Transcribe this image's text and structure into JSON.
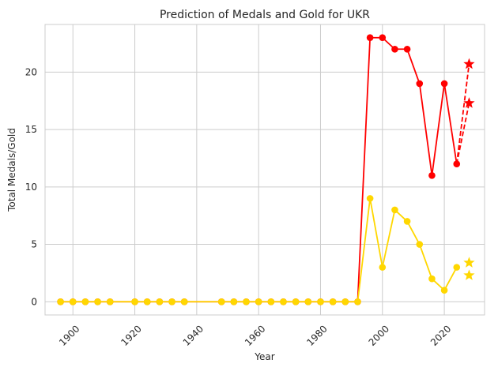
{
  "chart_data": {
    "type": "line",
    "title": "Prediction of Medals and Gold for UKR",
    "xlabel": "Year",
    "ylabel": "Total Medals/Gold",
    "xlim": [
      1891,
      2033
    ],
    "ylim": [
      -1.15,
      24.15
    ],
    "xticks": [
      1900,
      1920,
      1940,
      1960,
      1980,
      2000,
      2020
    ],
    "xtick_rotation": 45,
    "yticks": [
      0,
      5,
      10,
      15,
      20
    ],
    "grid": true,
    "series": [
      {
        "role": "total_medals",
        "color": "#ff0000",
        "marker": "circle",
        "line": "solid",
        "x": [
          1896,
          1900,
          1904,
          1908,
          1912,
          1920,
          1924,
          1928,
          1932,
          1936,
          1948,
          1952,
          1956,
          1960,
          1964,
          1968,
          1972,
          1976,
          1980,
          1984,
          1988,
          1992,
          1996,
          2000,
          2004,
          2008,
          2012,
          2016,
          2020,
          2024
        ],
        "y": [
          0,
          0,
          0,
          0,
          0,
          0,
          0,
          0,
          0,
          0,
          0,
          0,
          0,
          0,
          0,
          0,
          0,
          0,
          0,
          0,
          0,
          0,
          23,
          23,
          22,
          22,
          19,
          11,
          19,
          12
        ]
      },
      {
        "role": "total_medals_prediction",
        "color": "#ff0000",
        "marker": "star",
        "line": "dashed",
        "x": [
          2024,
          2028,
          2028
        ],
        "y": [
          12,
          20.7,
          17.3
        ],
        "segments": [
          [
            2024,
            12,
            2028,
            20.7
          ],
          [
            2024,
            12,
            2028,
            17.3
          ]
        ]
      },
      {
        "role": "gold_medals",
        "color": "#ffd700",
        "marker": "circle",
        "line": "solid",
        "x": [
          1896,
          1900,
          1904,
          1908,
          1912,
          1920,
          1924,
          1928,
          1932,
          1936,
          1948,
          1952,
          1956,
          1960,
          1964,
          1968,
          1972,
          1976,
          1980,
          1984,
          1988,
          1992,
          1996,
          2000,
          2004,
          2008,
          2012,
          2016,
          2020,
          2024
        ],
        "y": [
          0,
          0,
          0,
          0,
          0,
          0,
          0,
          0,
          0,
          0,
          0,
          0,
          0,
          0,
          0,
          0,
          0,
          0,
          0,
          0,
          0,
          0,
          9,
          3,
          8,
          7,
          5,
          2,
          1,
          3
        ]
      },
      {
        "role": "gold_medals_prediction",
        "color": "#ffd700",
        "marker": "star",
        "line": "none",
        "x": [
          2028,
          2028
        ],
        "y": [
          3.4,
          2.3
        ]
      }
    ]
  }
}
